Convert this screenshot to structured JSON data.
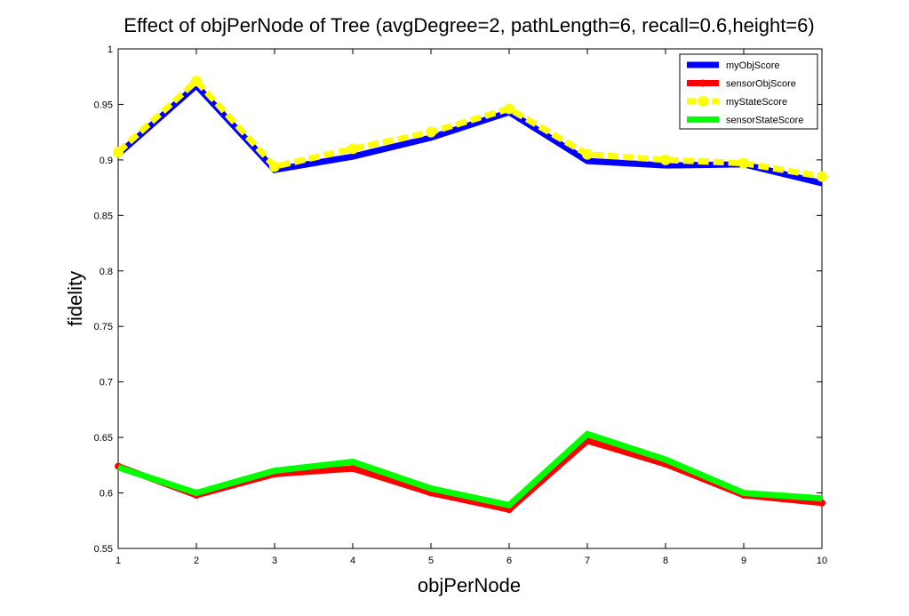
{
  "chart_data": {
    "type": "line",
    "title": "Effect of objPerNode of Tree (avgDegree=2, pathLength=6, recall=0.6,height=6)",
    "xlabel": "objPerNode",
    "ylabel": "fidelity",
    "xlim": [
      1,
      10
    ],
    "ylim": [
      0.55,
      1
    ],
    "xticks": [
      1,
      2,
      3,
      4,
      5,
      6,
      7,
      8,
      9,
      10
    ],
    "yticks": [
      0.55,
      0.6,
      0.65,
      0.7,
      0.75,
      0.8,
      0.85,
      0.9,
      0.95,
      1
    ],
    "x": [
      1,
      2,
      3,
      4,
      5,
      6,
      7,
      8,
      9,
      10
    ],
    "grid": false,
    "legend_position": "top-right",
    "series": [
      {
        "name": "myObjScore",
        "color": "#0000ff",
        "style": "solid",
        "marker": "none",
        "values": [
          0.905,
          0.967,
          0.891,
          0.903,
          0.92,
          0.943,
          0.899,
          0.895,
          0.896,
          0.879
        ]
      },
      {
        "name": "sensorObjScore",
        "color": "#ff0000",
        "style": "solid",
        "marker": "dot",
        "values": [
          0.624,
          0.598,
          0.617,
          0.622,
          0.6,
          0.585,
          0.647,
          0.626,
          0.598,
          0.591
        ]
      },
      {
        "name": "myStateScore",
        "color": "#ffff00",
        "style": "dashed",
        "marker": "circle",
        "values": [
          0.907,
          0.971,
          0.894,
          0.91,
          0.925,
          0.946,
          0.905,
          0.9,
          0.897,
          0.885
        ]
      },
      {
        "name": "sensorStateScore",
        "color": "#00ff00",
        "style": "solid",
        "marker": "none",
        "values": [
          0.623,
          0.6,
          0.62,
          0.628,
          0.604,
          0.589,
          0.653,
          0.63,
          0.6,
          0.595
        ]
      }
    ]
  }
}
